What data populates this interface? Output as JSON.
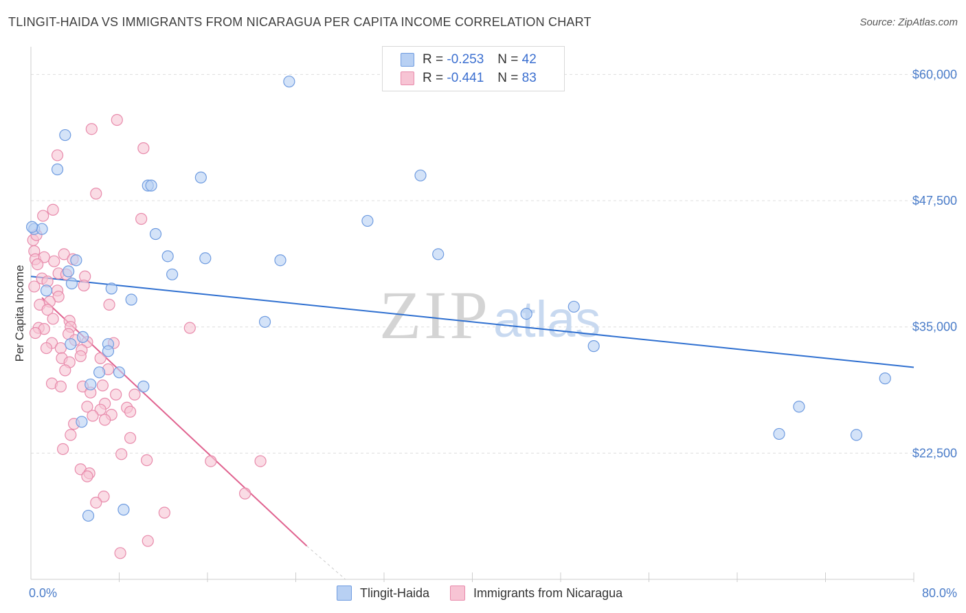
{
  "title": "TLINGIT-HAIDA VS IMMIGRANTS FROM NICARAGUA PER CAPITA INCOME CORRELATION CHART",
  "source": "Source: ZipAtlas.com",
  "legend": {
    "row1": {
      "r_label": "R = ",
      "r_value": "-0.253",
      "n_label": "N = ",
      "n_value": "42"
    },
    "row2": {
      "r_label": "R = ",
      "r_value": "-0.441",
      "n_label": "N = ",
      "n_value": "83"
    }
  },
  "watermark": {
    "zip": "ZIP",
    "atlas": "atlas"
  },
  "colors": {
    "blue_fill": "#b8d0f3",
    "blue_stroke": "#6e9be0",
    "blue_line": "#2e6fd0",
    "pink_fill": "#f7c4d4",
    "pink_stroke": "#e88aab",
    "pink_line": "#e0628f",
    "axis_text": "#4a7cc9",
    "grid": "#dddddd"
  },
  "chart_data": {
    "type": "scatter",
    "title": "TLINGIT-HAIDA VS IMMIGRANTS FROM NICARAGUA PER CAPITA INCOME CORRELATION CHART",
    "xlabel": "",
    "ylabel": "Per Capita Income",
    "xlim": [
      0,
      80
    ],
    "ylim": [
      10000,
      62000
    ],
    "x_tick_labels": [
      "0.0%",
      "80.0%"
    ],
    "y_ticks": [
      22500,
      35000,
      47500,
      60000
    ],
    "y_tick_labels": [
      "$22,500",
      "$35,000",
      "$47,500",
      "$60,000"
    ],
    "series": [
      {
        "name": "Tlingit-Haida",
        "color": "#6e9be0",
        "points": [
          [
            23.4,
            59300
          ],
          [
            3.1,
            54000
          ],
          [
            2.4,
            50600
          ],
          [
            10.6,
            49000
          ],
          [
            10.9,
            49000
          ],
          [
            15.4,
            49800
          ],
          [
            35.3,
            50000
          ],
          [
            0.3,
            44700
          ],
          [
            1.0,
            44700
          ],
          [
            11.3,
            44200
          ],
          [
            30.5,
            45500
          ],
          [
            12.4,
            42000
          ],
          [
            15.8,
            41800
          ],
          [
            22.6,
            41600
          ],
          [
            36.9,
            42200
          ],
          [
            4.1,
            41600
          ],
          [
            3.4,
            40500
          ],
          [
            12.8,
            40200
          ],
          [
            3.7,
            39300
          ],
          [
            1.4,
            38600
          ],
          [
            7.3,
            38800
          ],
          [
            9.1,
            37700
          ],
          [
            0.1,
            44900
          ],
          [
            44.9,
            36300
          ],
          [
            49.2,
            37000
          ],
          [
            21.2,
            35500
          ],
          [
            4.7,
            34000
          ],
          [
            3.6,
            33300
          ],
          [
            7.0,
            33300
          ],
          [
            7.0,
            32600
          ],
          [
            8.0,
            30500
          ],
          [
            6.2,
            30500
          ],
          [
            51.0,
            33100
          ],
          [
            77.4,
            29900
          ],
          [
            5.4,
            29300
          ],
          [
            10.2,
            29100
          ],
          [
            69.6,
            27100
          ],
          [
            4.6,
            25600
          ],
          [
            67.8,
            24400
          ],
          [
            74.8,
            24300
          ],
          [
            8.4,
            16900
          ],
          [
            5.2,
            16300
          ]
        ]
      },
      {
        "name": "Immigrants from Nicaragua",
        "color": "#e88aab",
        "points": [
          [
            7.8,
            55500
          ],
          [
            5.5,
            54600
          ],
          [
            10.2,
            52700
          ],
          [
            2.4,
            52000
          ],
          [
            5.9,
            48200
          ],
          [
            2.0,
            46600
          ],
          [
            1.1,
            46000
          ],
          [
            10.0,
            45700
          ],
          [
            0.2,
            43600
          ],
          [
            0.3,
            42500
          ],
          [
            0.4,
            41700
          ],
          [
            3.0,
            42200
          ],
          [
            1.2,
            41900
          ],
          [
            0.6,
            41200
          ],
          [
            2.1,
            41500
          ],
          [
            3.8,
            41700
          ],
          [
            2.5,
            40300
          ],
          [
            1.0,
            39800
          ],
          [
            4.9,
            40000
          ],
          [
            1.5,
            39500
          ],
          [
            3.2,
            40200
          ],
          [
            0.3,
            39000
          ],
          [
            4.8,
            39100
          ],
          [
            2.4,
            38600
          ],
          [
            2.5,
            38000
          ],
          [
            0.8,
            37200
          ],
          [
            1.7,
            37500
          ],
          [
            1.5,
            36700
          ],
          [
            7.1,
            37200
          ],
          [
            3.5,
            35600
          ],
          [
            2.0,
            35800
          ],
          [
            0.7,
            34900
          ],
          [
            1.2,
            34800
          ],
          [
            3.6,
            35000
          ],
          [
            0.4,
            34400
          ],
          [
            3.4,
            34300
          ],
          [
            4.0,
            33700
          ],
          [
            1.9,
            33400
          ],
          [
            5.1,
            33500
          ],
          [
            7.5,
            33400
          ],
          [
            1.4,
            32900
          ],
          [
            2.7,
            32900
          ],
          [
            4.6,
            32700
          ],
          [
            4.5,
            32100
          ],
          [
            2.8,
            31900
          ],
          [
            6.3,
            31900
          ],
          [
            3.5,
            31500
          ],
          [
            3.1,
            30700
          ],
          [
            14.4,
            34900
          ],
          [
            7.0,
            30800
          ],
          [
            1.9,
            29400
          ],
          [
            2.7,
            29100
          ],
          [
            4.7,
            29100
          ],
          [
            6.5,
            29200
          ],
          [
            5.4,
            28500
          ],
          [
            7.7,
            28300
          ],
          [
            9.4,
            28300
          ],
          [
            6.7,
            27400
          ],
          [
            5.1,
            27100
          ],
          [
            8.7,
            27000
          ],
          [
            6.3,
            26800
          ],
          [
            7.3,
            26300
          ],
          [
            5.6,
            26200
          ],
          [
            6.7,
            25800
          ],
          [
            9.0,
            26600
          ],
          [
            3.9,
            25400
          ],
          [
            3.6,
            24300
          ],
          [
            9.0,
            24000
          ],
          [
            2.9,
            22900
          ],
          [
            8.2,
            22400
          ],
          [
            10.5,
            21800
          ],
          [
            16.3,
            21700
          ],
          [
            20.8,
            21700
          ],
          [
            4.5,
            20900
          ],
          [
            5.3,
            20500
          ],
          [
            5.1,
            20200
          ],
          [
            6.6,
            18200
          ],
          [
            19.4,
            18500
          ],
          [
            5.9,
            17600
          ],
          [
            12.1,
            16600
          ],
          [
            10.6,
            13800
          ],
          [
            8.1,
            12600
          ],
          [
            0.5,
            44100
          ]
        ]
      }
    ],
    "trendlines": [
      {
        "series": "Tlingit-Haida",
        "x": [
          0,
          80
        ],
        "y": [
          40000,
          31000
        ],
        "style": "solid"
      },
      {
        "series": "Immigrants from Nicaragua",
        "x": [
          1,
          25
        ],
        "y": [
          37900,
          13300
        ],
        "style": "solid"
      },
      {
        "series": "Immigrants from Nicaragua",
        "x": [
          25,
          28.5
        ],
        "y": [
          13300,
          10000
        ],
        "style": "dashed"
      }
    ],
    "legend_position": "top-center"
  }
}
